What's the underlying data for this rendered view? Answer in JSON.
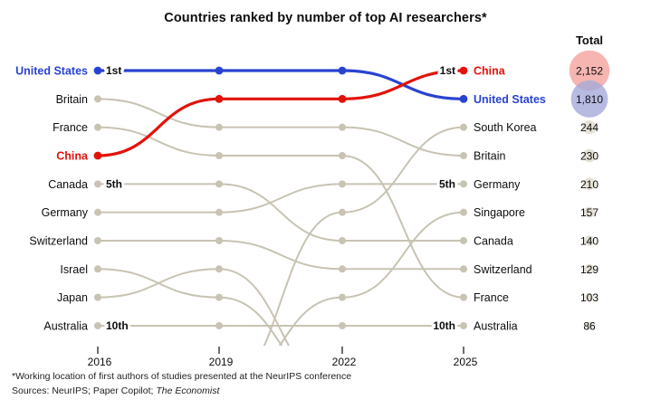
{
  "title": "Countries ranked by number of top AI researchers*",
  "totals_header": "Total",
  "footnote": "*Working location of first authors of studies presented at the NeurIPS conference",
  "sources_prefix": "Sources: NeurIPS; Paper Copilot; ",
  "sources_italic": "The Economist",
  "colors": {
    "highlight_red": "#e3120b",
    "highlight_blue": "#2943d0",
    "line_gray": "#c8c3b2",
    "text": "#0d0d0d",
    "total_circle_red": "#f4a29d",
    "total_circle_blue": "#a5aadb",
    "total_circle_default": "#dedacc"
  },
  "chart_data": {
    "type": "bump",
    "note": "Rank of each country by number of top AI researchers; intermediate ranks estimated from line paths; null = outside top 10",
    "x_labels": [
      "2016",
      "2019",
      "2022",
      "2025"
    ],
    "rank_annotations": [
      {
        "rank": 1,
        "label": "1st"
      },
      {
        "rank": 5,
        "label": "5th"
      },
      {
        "rank": 10,
        "label": "10th"
      }
    ],
    "series": [
      {
        "name": "United States",
        "bold": true,
        "color": "#2943d0",
        "circle_color": "#a5aadb",
        "ranks": [
          1,
          1,
          1,
          2
        ],
        "total_value": 1810,
        "total_label": "1,810"
      },
      {
        "name": "Britain",
        "ranks": [
          2,
          3,
          3,
          4
        ],
        "total_value": 230,
        "total_label": "230"
      },
      {
        "name": "France",
        "ranks": [
          3,
          4,
          4,
          9
        ],
        "total_value": 103,
        "total_label": "103"
      },
      {
        "name": "China",
        "bold": true,
        "color": "#e3120b",
        "circle_color": "#f4a29d",
        "ranks": [
          4,
          2,
          2,
          1
        ],
        "total_value": 2152,
        "total_label": "2,152"
      },
      {
        "name": "Canada",
        "ranks": [
          5,
          5,
          7,
          7
        ],
        "total_value": 140,
        "total_label": "140"
      },
      {
        "name": "Germany",
        "ranks": [
          6,
          6,
          5,
          5
        ],
        "total_value": 210,
        "total_label": "210"
      },
      {
        "name": "Switzerland",
        "ranks": [
          7,
          7,
          8,
          8
        ],
        "total_value": 129,
        "total_label": "129"
      },
      {
        "name": "Israel",
        "ranks": [
          8,
          9,
          null,
          null
        ]
      },
      {
        "name": "Japan",
        "ranks": [
          9,
          8,
          null,
          null
        ]
      },
      {
        "name": "Australia",
        "ranks": [
          10,
          10,
          10,
          10
        ],
        "total_value": 86,
        "total_label": "86"
      },
      {
        "name": "South Korea",
        "ranks": [
          null,
          null,
          6,
          3
        ],
        "total_value": 244,
        "total_label": "244"
      },
      {
        "name": "Singapore",
        "ranks": [
          null,
          null,
          9,
          6
        ],
        "total_value": 157,
        "total_label": "157"
      }
    ]
  }
}
